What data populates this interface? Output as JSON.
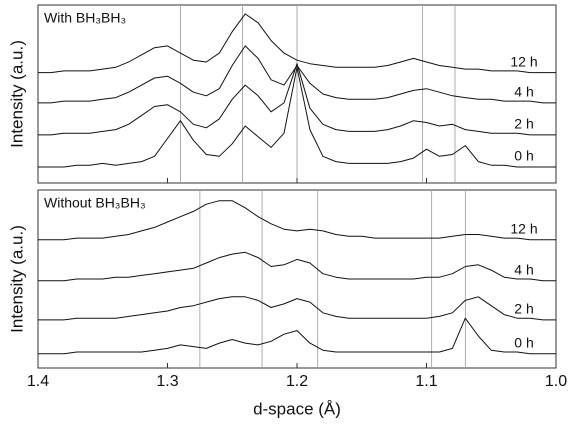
{
  "chart_data": [
    {
      "type": "line",
      "title": "With BH₃BH₃",
      "ylabel": "Intensity (a.u.)",
      "xlim": [
        1.4,
        1.0
      ],
      "ylim": [
        0,
        100
      ],
      "xticks": [
        1.4,
        1.3,
        1.2,
        1.1,
        {
          "value": 1,
          "label": "1.0"
        }
      ],
      "ref_lines": [
        1.29,
        1.242,
        1.2,
        1.103,
        1.078
      ],
      "ref_color": "#999999",
      "x": [
        1.4,
        1.39,
        1.38,
        1.37,
        1.36,
        1.35,
        1.34,
        1.33,
        1.32,
        1.31,
        1.3,
        1.29,
        1.28,
        1.27,
        1.26,
        1.25,
        1.24,
        1.23,
        1.22,
        1.21,
        1.2,
        1.19,
        1.18,
        1.17,
        1.16,
        1.15,
        1.14,
        1.13,
        1.12,
        1.11,
        1.1,
        1.09,
        1.08,
        1.07,
        1.06,
        1.05,
        1.04,
        1.03,
        1.02,
        1.01,
        1.0
      ],
      "series": [
        {
          "name": "12 h",
          "color": "#111111",
          "values": [
            62,
            62,
            63,
            63,
            63,
            64,
            65,
            68,
            72,
            76,
            77,
            73,
            69,
            68,
            73,
            85,
            95,
            90,
            80,
            73,
            69,
            67,
            66,
            65,
            65,
            65,
            65,
            66,
            68,
            70,
            68,
            66,
            65,
            64,
            64,
            63,
            63,
            63,
            62,
            62,
            62
          ]
        },
        {
          "name": "4 h",
          "color": "#111111",
          "values": [
            45,
            45,
            46,
            46,
            46,
            47,
            48,
            51,
            55,
            59,
            60,
            56,
            51,
            49,
            53,
            66,
            77,
            70,
            58,
            55,
            66,
            56,
            50,
            48,
            47,
            47,
            47,
            48,
            50,
            52,
            53,
            51,
            49,
            48,
            47,
            47,
            46,
            46,
            46,
            45,
            45
          ]
        },
        {
          "name": "2 h",
          "color": "#111111",
          "values": [
            27,
            27,
            28,
            28,
            28,
            29,
            30,
            33,
            38,
            43,
            44,
            40,
            33,
            31,
            36,
            47,
            55,
            49,
            40,
            45,
            67,
            42,
            33,
            30,
            29,
            29,
            29,
            30,
            32,
            35,
            34,
            32,
            33,
            30,
            29,
            28,
            28,
            28,
            27,
            27,
            27
          ]
        },
        {
          "name": "0 h",
          "color": "#111111",
          "values": [
            9,
            9,
            9,
            10,
            10,
            11,
            10,
            11,
            12,
            15,
            25,
            35,
            24,
            16,
            15,
            22,
            32,
            26,
            20,
            28,
            65,
            30,
            15,
            12,
            11,
            11,
            11,
            11,
            12,
            14,
            19,
            15,
            16,
            21,
            12,
            10,
            10,
            9,
            9,
            9,
            9
          ]
        }
      ]
    },
    {
      "type": "line",
      "title": "Without BH₃BH₃",
      "ylabel": "Intensity (a.u.)",
      "xlabel": "d-space (Å)",
      "xlim": [
        1.4,
        1.0
      ],
      "ylim": [
        0,
        100
      ],
      "xticks": [
        1.4,
        1.3,
        1.2,
        1.1,
        {
          "value": 1,
          "label": "1.0"
        }
      ],
      "ref_lines": [
        1.275,
        1.227,
        1.184,
        1.096,
        1.07
      ],
      "ref_color": "#999999",
      "x": [
        1.4,
        1.39,
        1.38,
        1.37,
        1.36,
        1.35,
        1.34,
        1.33,
        1.32,
        1.31,
        1.3,
        1.29,
        1.28,
        1.27,
        1.26,
        1.25,
        1.24,
        1.23,
        1.22,
        1.21,
        1.2,
        1.19,
        1.18,
        1.17,
        1.16,
        1.15,
        1.14,
        1.13,
        1.12,
        1.11,
        1.1,
        1.09,
        1.08,
        1.07,
        1.06,
        1.05,
        1.04,
        1.03,
        1.02,
        1.01,
        1.0
      ],
      "series": [
        {
          "name": "12 h",
          "color": "#111111",
          "values": [
            72,
            72,
            72,
            73,
            73,
            73,
            74,
            75,
            77,
            79,
            82,
            85,
            88,
            92,
            94,
            94,
            90,
            85,
            81,
            78,
            77,
            78,
            77,
            75,
            74,
            74,
            73,
            73,
            73,
            73,
            73,
            73,
            74,
            75,
            75,
            74,
            73,
            73,
            72,
            72,
            72
          ]
        },
        {
          "name": "4 h",
          "color": "#111111",
          "values": [
            49,
            49,
            49,
            50,
            50,
            50,
            51,
            51,
            52,
            53,
            54,
            55,
            56,
            59,
            62,
            64,
            65,
            62,
            57,
            58,
            61,
            59,
            53,
            51,
            50,
            50,
            50,
            50,
            50,
            50,
            51,
            51,
            53,
            57,
            58,
            55,
            51,
            50,
            50,
            49,
            49
          ]
        },
        {
          "name": "2 h",
          "color": "#111111",
          "values": [
            27,
            27,
            27,
            28,
            28,
            28,
            28,
            29,
            30,
            31,
            32,
            34,
            35,
            37,
            39,
            40,
            40,
            38,
            34,
            36,
            39,
            37,
            31,
            29,
            28,
            28,
            28,
            28,
            28,
            28,
            28,
            29,
            31,
            38,
            40,
            35,
            30,
            28,
            28,
            27,
            27
          ]
        },
        {
          "name": "0 h",
          "color": "#111111",
          "values": [
            8,
            8,
            8,
            9,
            9,
            9,
            9,
            9,
            9,
            10,
            11,
            13,
            12,
            11,
            14,
            16,
            14,
            13,
            15,
            19,
            21,
            14,
            10,
            9,
            9,
            9,
            9,
            9,
            9,
            9,
            9,
            9,
            11,
            28,
            18,
            10,
            9,
            9,
            8,
            8,
            8
          ]
        }
      ]
    }
  ]
}
